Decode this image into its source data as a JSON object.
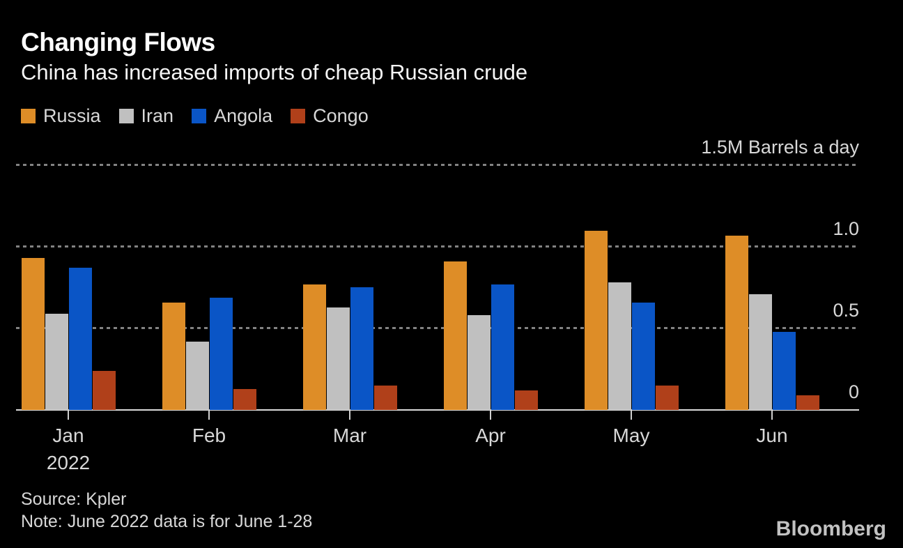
{
  "header": {
    "title": "Changing Flows",
    "subtitle": "China has increased imports of cheap Russian crude"
  },
  "chart_data": {
    "type": "bar",
    "categories": [
      "Jan",
      "Feb",
      "Mar",
      "Apr",
      "May",
      "Jun"
    ],
    "x_sub_label": {
      "category": "Jan",
      "text": "2022"
    },
    "series": [
      {
        "name": "Russia",
        "color": "#DE8D27",
        "values": [
          0.93,
          0.66,
          0.77,
          0.91,
          1.1,
          1.07
        ]
      },
      {
        "name": "Iran",
        "color": "#C0C0C0",
        "values": [
          0.59,
          0.42,
          0.63,
          0.58,
          0.78,
          0.71
        ]
      },
      {
        "name": "Angola",
        "color": "#0A55C6",
        "values": [
          0.87,
          0.69,
          0.75,
          0.77,
          0.66,
          0.48
        ]
      },
      {
        "name": "Congo",
        "color": "#B0401A",
        "values": [
          0.24,
          0.13,
          0.15,
          0.12,
          0.15,
          0.09
        ]
      }
    ],
    "ylabel": "1.5M Barrels a day",
    "y_axis": {
      "range": [
        0,
        1.68
      ],
      "gridlines": [
        0.5,
        1.0,
        1.5
      ],
      "ticks": [
        {
          "value": 1.5,
          "label": "1.5M Barrels a day"
        },
        {
          "value": 1.0,
          "label": "1.0"
        },
        {
          "value": 0.5,
          "label": "0.5"
        },
        {
          "value": 0,
          "label": "0"
        }
      ]
    },
    "grid": "dotted-horizontal",
    "legend_position": "top-left"
  },
  "footer": {
    "source": "Source: Kpler",
    "note": "Note: June 2022 data is for June 1-28",
    "brand": "Bloomberg"
  },
  "colors": {
    "background": "#000000",
    "title_text": "#FFFFFF",
    "subtitle_text": "#F5F5F5",
    "axis_text": "#D8D8D8",
    "gridline": "#828282",
    "axis_line": "#DCDCDC",
    "brand_text": "#C2C2C2"
  }
}
